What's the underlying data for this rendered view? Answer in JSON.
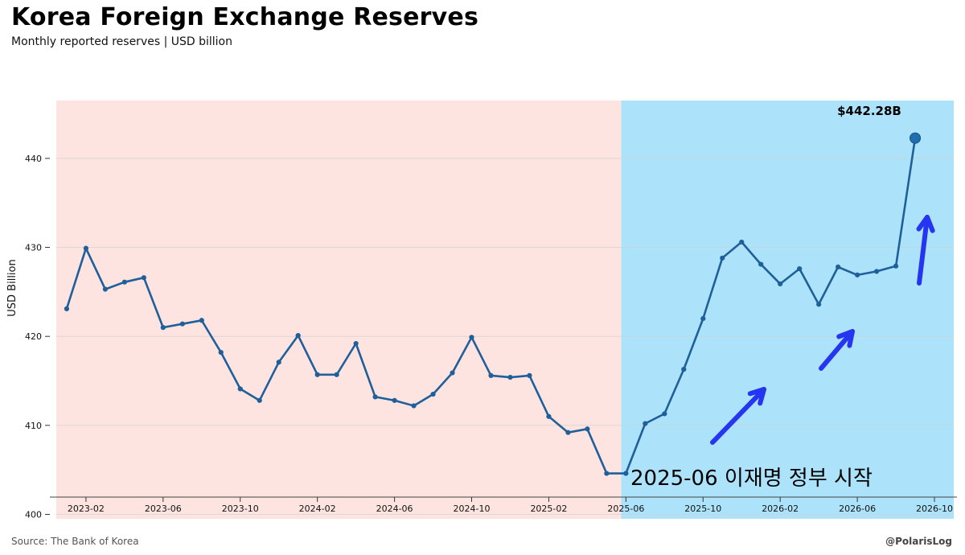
{
  "title": "Korea Foreign Exchange Reserves",
  "subtitle": "Monthly reported reserves | USD billion",
  "source": "Source: The Bank of Korea",
  "handle": "@PolarisLog",
  "chart_data": {
    "type": "line",
    "ylabel": "USD Billion",
    "ylim": [
      399.5,
      446.5
    ],
    "yticks": [
      400,
      410,
      420,
      430,
      440
    ],
    "xlim": [
      "2022-12-15",
      "2026-11-01"
    ],
    "xticks": [
      "2023-02",
      "2023-06",
      "2023-10",
      "2024-02",
      "2024-06",
      "2024-10",
      "2025-02",
      "2025-06",
      "2025-10",
      "2026-02",
      "2026-06",
      "2026-10"
    ],
    "grid": true,
    "series": [
      {
        "color": "#1f5f9a",
        "points": [
          [
            "2023-01",
            423.1
          ],
          [
            "2023-02",
            429.9
          ],
          [
            "2023-03",
            425.3
          ],
          [
            "2023-04",
            426.1
          ],
          [
            "2023-05",
            426.6
          ],
          [
            "2023-06",
            421.0
          ],
          [
            "2023-07",
            421.4
          ],
          [
            "2023-08",
            421.8
          ],
          [
            "2023-09",
            418.2
          ],
          [
            "2023-10",
            414.1
          ],
          [
            "2023-11",
            412.8
          ],
          [
            "2023-12",
            417.1
          ],
          [
            "2024-01",
            420.1
          ],
          [
            "2024-02",
            415.7
          ],
          [
            "2024-03",
            415.7
          ],
          [
            "2024-04",
            419.2
          ],
          [
            "2024-05",
            413.2
          ],
          [
            "2024-06",
            412.8
          ],
          [
            "2024-07",
            412.2
          ],
          [
            "2024-08",
            413.5
          ],
          [
            "2024-09",
            415.9
          ],
          [
            "2024-10",
            419.9
          ],
          [
            "2024-11",
            415.6
          ],
          [
            "2024-12",
            415.4
          ],
          [
            "2025-01",
            415.6
          ],
          [
            "2025-02",
            411.0
          ],
          [
            "2025-03",
            409.2
          ],
          [
            "2025-04",
            409.6
          ],
          [
            "2025-05",
            404.6
          ],
          [
            "2025-06",
            404.6
          ],
          [
            "2025-07",
            410.2
          ],
          [
            "2025-08",
            411.3
          ],
          [
            "2025-09",
            416.3
          ],
          [
            "2025-10",
            422.0
          ],
          [
            "2025-11",
            428.8
          ],
          [
            "2025-12",
            430.6
          ],
          [
            "2026-01",
            428.1
          ],
          [
            "2026-02",
            425.9
          ],
          [
            "2026-03",
            427.6
          ],
          [
            "2026-04",
            423.6
          ],
          [
            "2026-05",
            427.8
          ],
          [
            "2026-06",
            426.9
          ],
          [
            "2026-07",
            427.3
          ],
          [
            "2026-08",
            427.9
          ],
          [
            "2026-09",
            442.28
          ]
        ]
      }
    ],
    "regions": [
      {
        "from": "2022-12-15",
        "to": "2025-05-24",
        "color": "#fde4e1"
      },
      {
        "from": "2025-05-24",
        "to": "2026-11-01",
        "color": "#ace3fb"
      }
    ],
    "peak": {
      "x": "2026-09",
      "y": 442.28,
      "label": "$442.28B"
    },
    "annotation": {
      "text": "2025-06 이재명 정부 시작"
    },
    "arrow_color": "#2535f0"
  }
}
